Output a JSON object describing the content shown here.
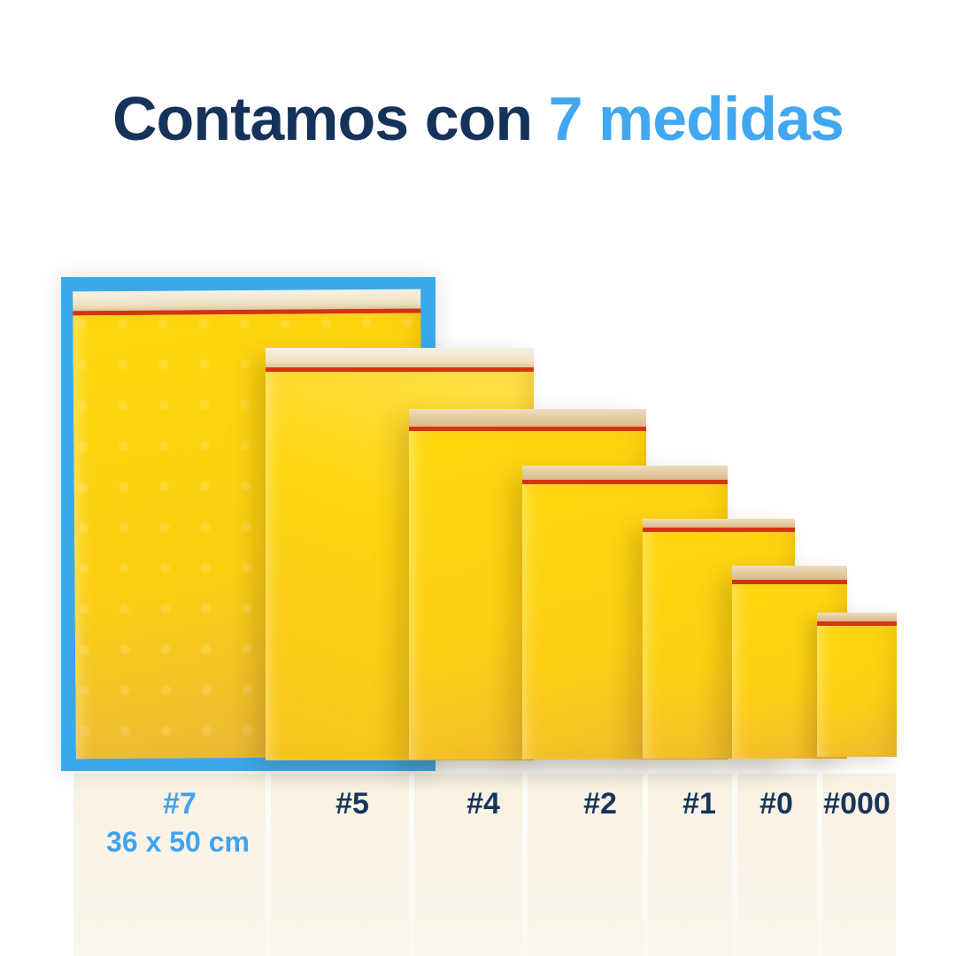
{
  "title": {
    "prefix": "Contamos con ",
    "highlight": "7 medidas"
  },
  "sizes": [
    {
      "label": "#7",
      "dimensions": "36 x 50 cm",
      "selected": true
    },
    {
      "label": "#5",
      "selected": false
    },
    {
      "label": "#4",
      "selected": false
    },
    {
      "label": "#2",
      "selected": false
    },
    {
      "label": "#1",
      "selected": false
    },
    {
      "label": "#0",
      "selected": false
    },
    {
      "label": "#000",
      "selected": false
    }
  ],
  "colors": {
    "heading_navy": "#15325B",
    "accent_blue": "#41A7F0",
    "selection_frame_blue": "#3BA9E9",
    "envelope_yellow": "#FFD513",
    "flap_cream": "#F2EAD7",
    "flap_tan": "#E2C79D",
    "seal_red_dark": "#C8260F",
    "seal_red_orange": "#E23E0A",
    "reflection_cream": "#FAF4E8",
    "background": "#FFFFFF"
  }
}
